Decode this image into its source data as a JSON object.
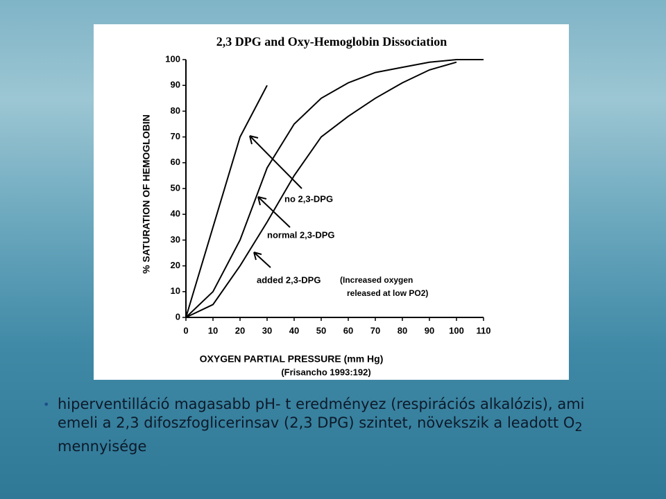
{
  "chart_data": {
    "type": "line",
    "title": "2,3 DPG and Oxy-Hemoglobin Dissociation",
    "x_label": "OXYGEN PARTIAL PRESSURE (mm Hg)",
    "source": "(Frisancho 1993:192)",
    "y_label": "% SATURATION OF HEMOGLOBIN",
    "xlim": [
      0,
      110
    ],
    "xticks": [
      0,
      10,
      20,
      30,
      40,
      50,
      60,
      70,
      80,
      90,
      100,
      110
    ],
    "ylim": [
      0,
      100
    ],
    "yticks": [
      0,
      10,
      20,
      30,
      40,
      50,
      60,
      70,
      80,
      90,
      100
    ],
    "series": [
      {
        "name": "no 2,3-DPG",
        "color": "#000000",
        "x": [
          0,
          10,
          20,
          30
        ],
        "values": [
          0,
          35,
          70,
          90
        ]
      },
      {
        "name": "normal 2,3-DPG",
        "color": "#000000",
        "x": [
          0,
          10,
          20,
          30,
          40,
          50,
          60,
          70,
          80,
          90,
          100,
          110
        ],
        "values": [
          0,
          10,
          30,
          58,
          75,
          85,
          91,
          95,
          97,
          99,
          100,
          100
        ]
      },
      {
        "name": "added 2,3-DPG",
        "color": "#000000",
        "x": [
          0,
          10,
          20,
          30,
          40,
          50,
          60,
          70,
          80,
          90,
          100
        ],
        "values": [
          0,
          5,
          20,
          37,
          55,
          70,
          78,
          85,
          91,
          96,
          99
        ]
      }
    ],
    "annotation": [
      "(Increased oxygen",
      "released at low PO2)"
    ]
  },
  "bullet": {
    "text": "hiperventilláció magasabb pH- t eredményez (respirációs alkalózis), ami emeli a 2,3 difoszfoglicerinsav (2,3 DPG) szintet, növekszik a leadott O",
    "subscript": "2",
    "tail": " mennyisége"
  }
}
